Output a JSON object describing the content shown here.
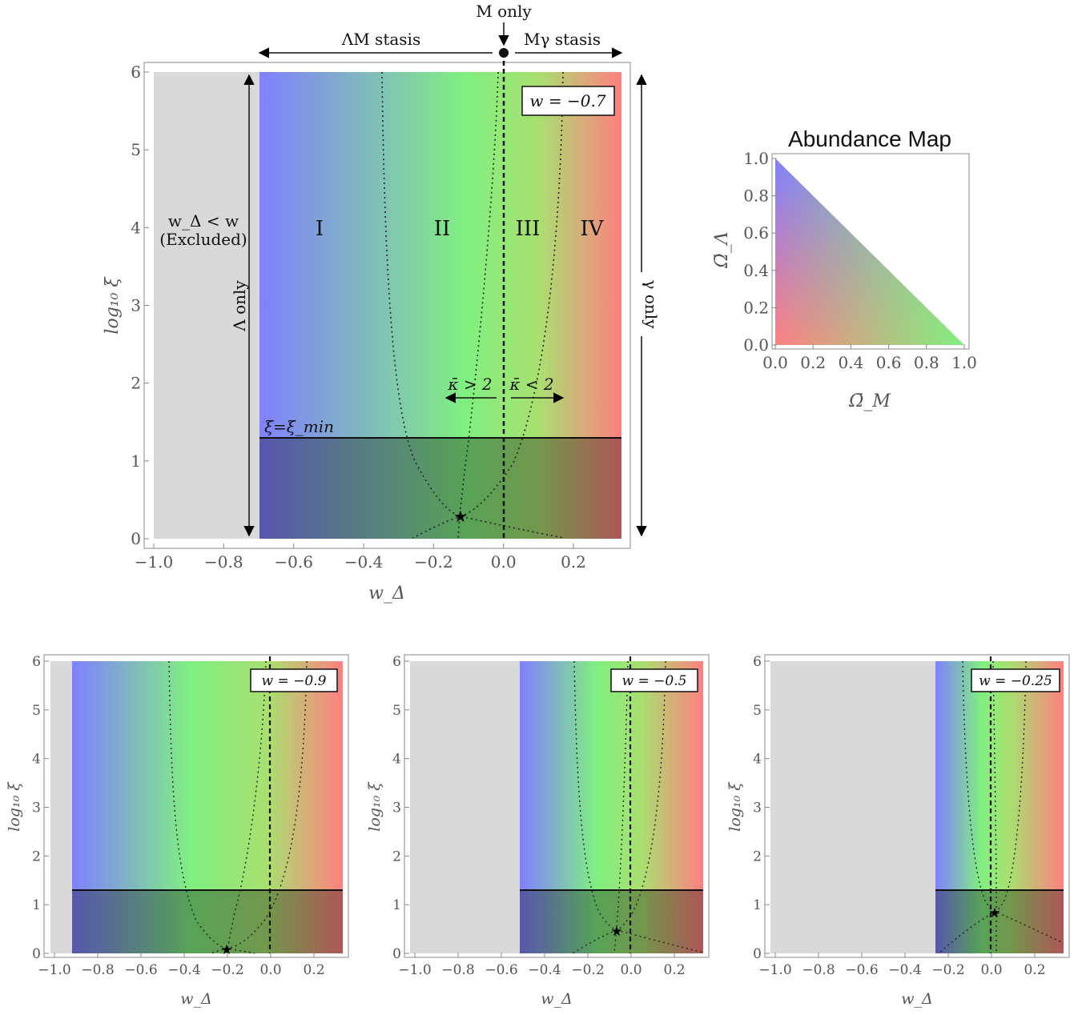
{
  "chart_data": [
    {
      "type": "heatmap",
      "panel": "main",
      "w": -0.7,
      "w_label": "w = −0.7",
      "xlabel": "w_Δ",
      "ylabel": "log₁₀ ξ",
      "xlim": [
        -1.05,
        0.35
      ],
      "ylim": [
        -0.1,
        6.1
      ],
      "xticks": [
        -1.0,
        -0.8,
        -0.6,
        -0.4,
        -0.2,
        0.0,
        0.2
      ],
      "xtick_labels": [
        "−1.0",
        "−0.8",
        "−0.6",
        "−0.4",
        "−0.2",
        "0.0",
        "0.2"
      ],
      "yticks": [
        0,
        1,
        2,
        3,
        4,
        5,
        6
      ],
      "ytick_labels": [
        "0",
        "1",
        "2",
        "3",
        "4",
        "5",
        "6"
      ],
      "excluded_region": {
        "x": [
          -1.0,
          -0.7
        ],
        "label_line1": "w_Δ < w",
        "label_line2": "(Excluded)"
      },
      "xi_min_line": {
        "y": 1.3,
        "label": "ξ=ξ_min"
      },
      "star": {
        "x": -0.125,
        "y": 0.28
      },
      "vertical_dashed": {
        "x": 0.0
      },
      "regions": [
        {
          "label": "I",
          "x": -0.53
        },
        {
          "label": "II",
          "x": -0.175
        },
        {
          "label": "III",
          "x": 0.07
        },
        {
          "label": "IV",
          "x": 0.25
        }
      ],
      "top_annotations": {
        "left_arrow": "ΛM stasis",
        "center": "M only",
        "right_arrow": "Mγ stasis"
      },
      "side_annotations": {
        "left": "Λ only",
        "right": "γ only"
      },
      "kappa_labels": {
        "left": "κ̄ > 2",
        "right": "κ̄ < 2"
      },
      "colors": {
        "blue": "#8080ff",
        "green": "#80f080",
        "red": "#ff8080",
        "excluded": "#d9d9d9"
      }
    },
    {
      "type": "heatmap",
      "panel": "bottom-left",
      "w": -0.9,
      "w_label": "w = −0.9",
      "xlabel": "w_Δ",
      "ylabel": "log₁₀ ξ",
      "xlim": [
        -1.05,
        0.35
      ],
      "ylim": [
        -0.1,
        6.1
      ],
      "xticks": [
        -1.0,
        -0.8,
        -0.6,
        -0.4,
        -0.2,
        0.0,
        0.2
      ],
      "xtick_labels": [
        "−1.0",
        "−0.8",
        "−0.6",
        "−0.4",
        "−0.2",
        "0.0",
        "0.2"
      ],
      "yticks": [
        0,
        1,
        2,
        3,
        4,
        5,
        6
      ],
      "ytick_labels": [
        "0",
        "1",
        "2",
        "3",
        "4",
        "5",
        "6"
      ],
      "xi_min_line": {
        "y": 1.3
      },
      "star": {
        "x": -0.2,
        "y": 0.1
      }
    },
    {
      "type": "heatmap",
      "panel": "bottom-middle",
      "w": -0.5,
      "w_label": "w = −0.5",
      "xlabel": "w_Δ",
      "ylabel": "log₁₀ ξ",
      "xlim": [
        -1.05,
        0.35
      ],
      "ylim": [
        -0.1,
        6.1
      ],
      "xticks": [
        -1.0,
        -0.8,
        -0.6,
        -0.4,
        -0.2,
        0.0,
        0.2
      ],
      "xtick_labels": [
        "−1.0",
        "−0.8",
        "−0.6",
        "−0.4",
        "−0.2",
        "0.0",
        "0.2"
      ],
      "yticks": [
        0,
        1,
        2,
        3,
        4,
        5,
        6
      ],
      "ytick_labels": [
        "0",
        "1",
        "2",
        "3",
        "4",
        "5",
        "6"
      ],
      "xi_min_line": {
        "y": 1.3
      },
      "star": {
        "x": -0.065,
        "y": 0.47
      }
    },
    {
      "type": "heatmap",
      "panel": "bottom-right",
      "w": -0.25,
      "w_label": "w = −0.25",
      "xlabel": "w_Δ",
      "ylabel": "log₁₀ ξ",
      "xlim": [
        -1.05,
        0.35
      ],
      "ylim": [
        -0.1,
        6.1
      ],
      "xticks": [
        -1.0,
        -0.8,
        -0.6,
        -0.4,
        -0.2,
        0.0,
        0.2
      ],
      "xtick_labels": [
        "−1.0",
        "−0.8",
        "−0.6",
        "−0.4",
        "−0.2",
        "0.0",
        "0.2"
      ],
      "yticks": [
        0,
        1,
        2,
        3,
        4,
        5,
        6
      ],
      "ytick_labels": [
        "0",
        "1",
        "2",
        "3",
        "4",
        "5",
        "6"
      ],
      "xi_min_line": {
        "y": 1.3
      },
      "star": {
        "x": 0.02,
        "y": 0.85
      }
    },
    {
      "type": "heatmap",
      "panel": "abundance-map",
      "title": "Abundance Map",
      "xlabel": "Ω̄_M",
      "ylabel": "Ω̄_Λ",
      "xlim": [
        0,
        1
      ],
      "ylim": [
        0,
        1
      ],
      "xticks": [
        0.0,
        0.2,
        0.4,
        0.6,
        0.8,
        1.0
      ],
      "xtick_labels": [
        "0.0",
        "0.2",
        "0.4",
        "0.6",
        "0.8",
        "1.0"
      ],
      "yticks": [
        0.0,
        0.2,
        0.4,
        0.6,
        0.8,
        1.0
      ],
      "ytick_labels": [
        "0.0",
        "0.2",
        "0.4",
        "0.6",
        "0.8",
        "1.0"
      ],
      "corner_colors": {
        "lambda": "#8080ff",
        "matter": "#80f080",
        "radiation": "#ff8080"
      }
    }
  ]
}
